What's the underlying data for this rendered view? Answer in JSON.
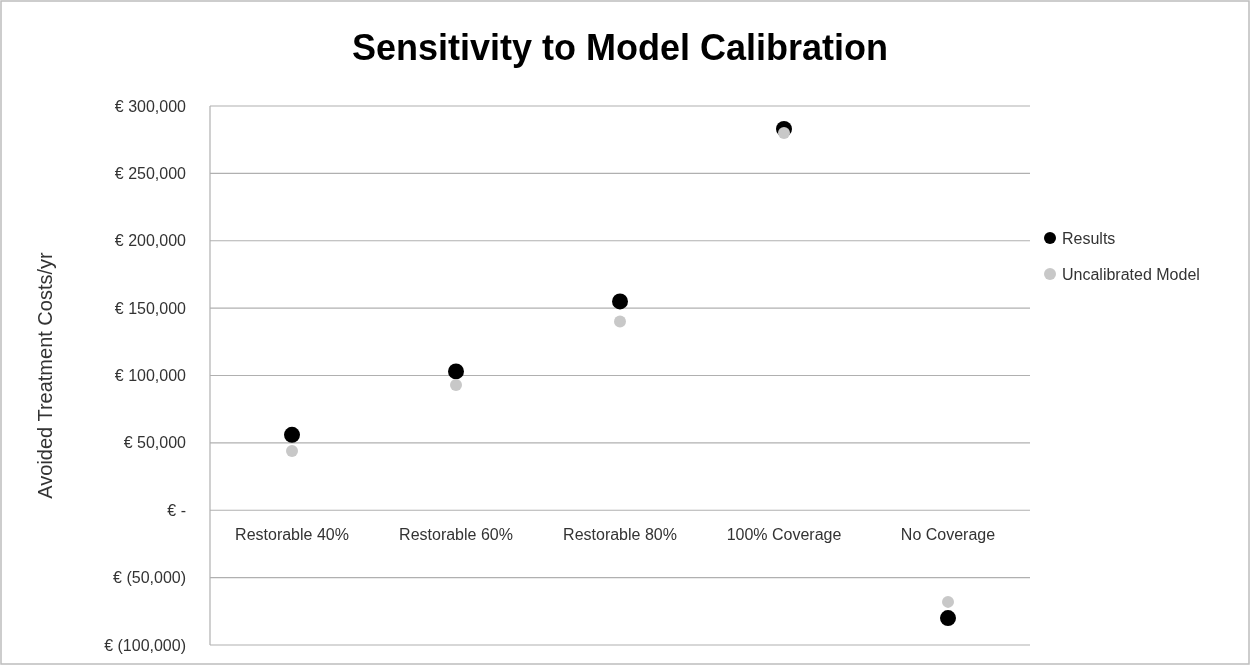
{
  "chart_data": {
    "type": "scatter",
    "title": "Sensitivity to Model Calibration",
    "ylabel": "Avoided Treatment Costs/yr",
    "categories": [
      "Restorable 40%",
      "Restorable 60%",
      "Restorable 80%",
      "100% Coverage",
      "No Coverage"
    ],
    "series": [
      {
        "name": "Results",
        "color": "#000000",
        "values": [
          56000,
          103000,
          155000,
          283000,
          -80000
        ]
      },
      {
        "name": "Uncalibrated Model",
        "color": "#c8c8c8",
        "values": [
          44000,
          93000,
          140000,
          280000,
          -68000
        ]
      }
    ],
    "ylim": [
      -100000,
      300000
    ],
    "yticks": [
      {
        "value": -100000,
        "label": "€ (100,000)"
      },
      {
        "value": -50000,
        "label": "€ (50,000)"
      },
      {
        "value": 0,
        "label": "€ -"
      },
      {
        "value": 50000,
        "label": "€ 50,000"
      },
      {
        "value": 100000,
        "label": "€ 100,000"
      },
      {
        "value": 150000,
        "label": "€ 150,000"
      },
      {
        "value": 200000,
        "label": "€ 200,000"
      },
      {
        "value": 250000,
        "label": "€ 250,000"
      },
      {
        "value": 300000,
        "label": "€ 300,000"
      }
    ],
    "grid": "y",
    "legend": "right",
    "marker": "circle"
  }
}
